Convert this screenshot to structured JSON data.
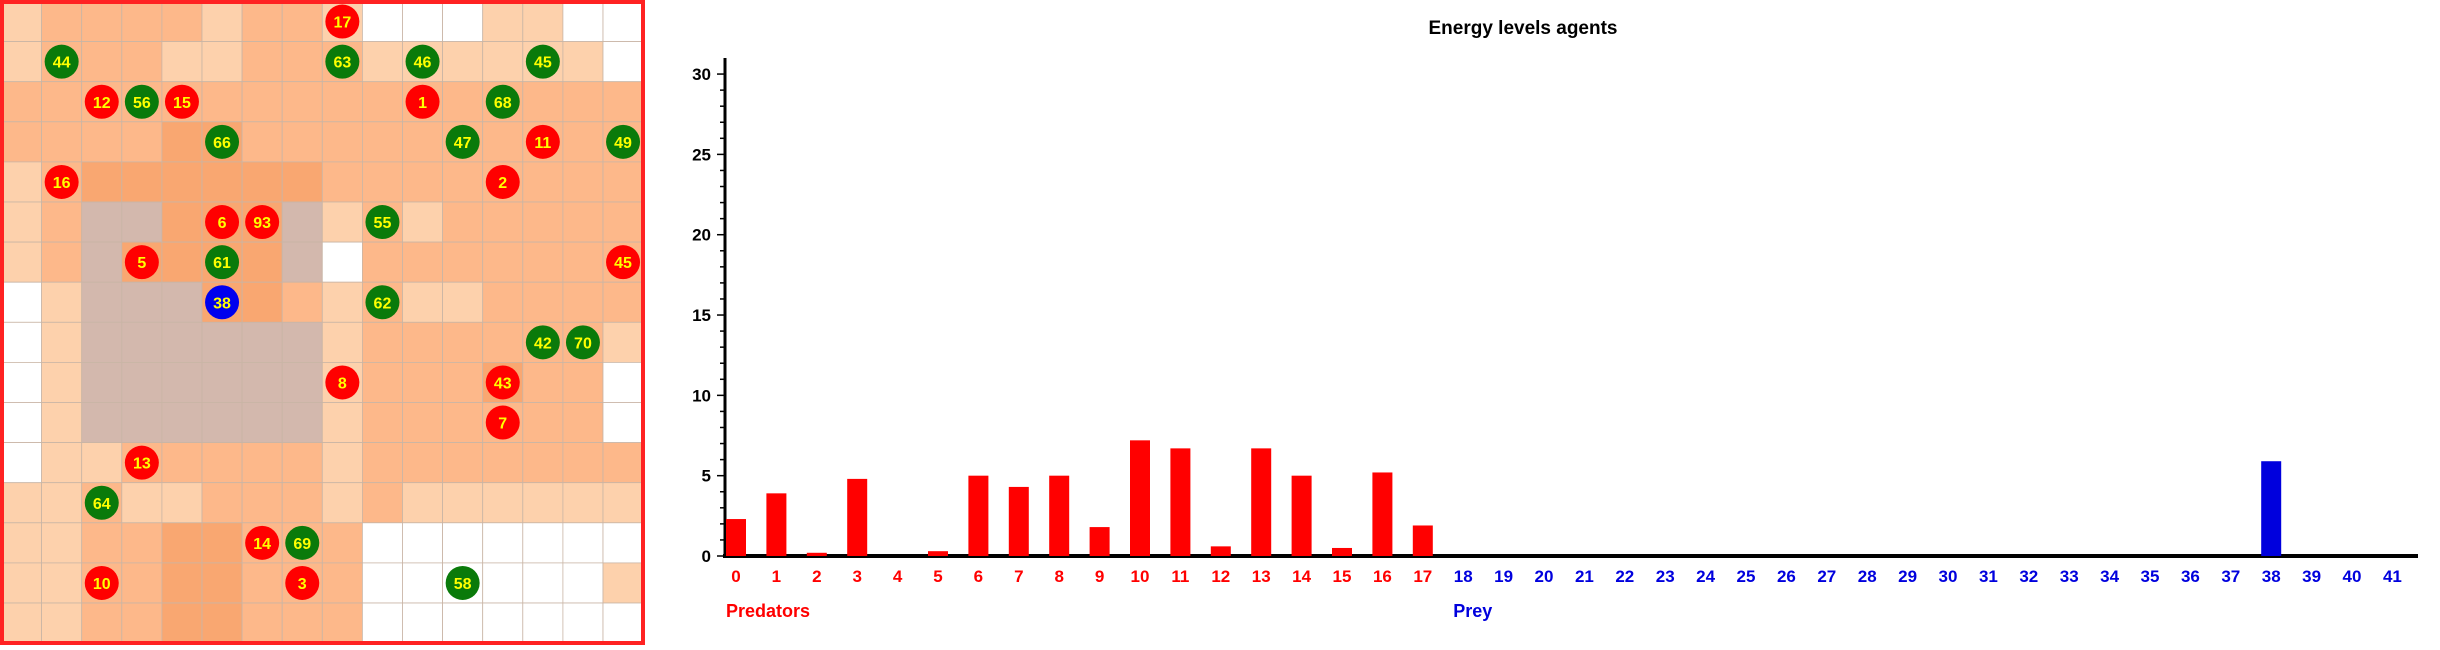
{
  "grid": {
    "rows": 16,
    "cols": 16,
    "palette": {
      "0": "#ffffff",
      "1": "#fdd1ac",
      "2": "#fdb88a",
      "3": "#f9a771",
      "4": "#f99c5f",
      "5": "#d3b8ad",
      "6": "#d7ac96"
    },
    "border_color": "#ff2222",
    "line_color": "#c9b5a5",
    "cells": [
      "1222212210001100",
      "1222112221111110",
      "2222222222222222",
      "2222332222222222",
      "1233333322222222",
      "1255333512122222",
      "1253333502222222",
      "0155533212112222",
      "0155555512222221",
      "0155555512223220",
      "0155555512222220",
      "0112222212222222",
      "1121122212111111",
      "1122332220000000",
      "1122332220000001",
      "1122332220000000"
    ],
    "agents": [
      {
        "id": "17",
        "type": "predator",
        "col": 8,
        "row": 0
      },
      {
        "id": "44",
        "type": "prey",
        "col": 1,
        "row": 1
      },
      {
        "id": "63",
        "type": "prey",
        "col": 8,
        "row": 1
      },
      {
        "id": "46",
        "type": "prey",
        "col": 10,
        "row": 1
      },
      {
        "id": "45",
        "type": "prey",
        "col": 13,
        "row": 1
      },
      {
        "id": "12",
        "type": "predator",
        "col": 2,
        "row": 2
      },
      {
        "id": "56",
        "type": "prey",
        "col": 3,
        "row": 2
      },
      {
        "id": "15",
        "type": "predator",
        "col": 4,
        "row": 2
      },
      {
        "id": "1",
        "type": "predator",
        "col": 10,
        "row": 2
      },
      {
        "id": "68",
        "type": "prey",
        "col": 12,
        "row": 2
      },
      {
        "id": "66",
        "type": "prey",
        "col": 5,
        "row": 3
      },
      {
        "id": "47",
        "type": "prey",
        "col": 11,
        "row": 3
      },
      {
        "id": "11",
        "type": "predator",
        "col": 13,
        "row": 3
      },
      {
        "id": "49",
        "type": "prey",
        "col": 15,
        "row": 3
      },
      {
        "id": "16",
        "type": "predator",
        "col": 1,
        "row": 4
      },
      {
        "id": "2",
        "type": "predator",
        "col": 12,
        "row": 4
      },
      {
        "id": "6",
        "type": "predator",
        "col": 5,
        "row": 5
      },
      {
        "id": "93",
        "type": "predator",
        "col": 6,
        "row": 5
      },
      {
        "id": "55",
        "type": "prey",
        "col": 9,
        "row": 5
      },
      {
        "id": "5",
        "type": "predator",
        "col": 3,
        "row": 6
      },
      {
        "id": "61",
        "type": "prey",
        "col": 5,
        "row": 6
      },
      {
        "id": "45",
        "type": "predator",
        "col": 15,
        "row": 6
      },
      {
        "id": "38",
        "type": "selected",
        "col": 5,
        "row": 7
      },
      {
        "id": "62",
        "type": "prey",
        "col": 9,
        "row": 7
      },
      {
        "id": "42",
        "type": "prey",
        "col": 13,
        "row": 8
      },
      {
        "id": "70",
        "type": "prey",
        "col": 14,
        "row": 8
      },
      {
        "id": "8",
        "type": "predator",
        "col": 8,
        "row": 9
      },
      {
        "id": "43",
        "type": "predator",
        "col": 12,
        "row": 9
      },
      {
        "id": "7",
        "type": "predator",
        "col": 12,
        "row": 10
      },
      {
        "id": "13",
        "type": "predator",
        "col": 3,
        "row": 11
      },
      {
        "id": "64",
        "type": "prey",
        "col": 2,
        "row": 12
      },
      {
        "id": "14",
        "type": "predator",
        "col": 6,
        "row": 13
      },
      {
        "id": "69",
        "type": "prey",
        "col": 7,
        "row": 13
      },
      {
        "id": "10",
        "type": "predator",
        "col": 2,
        "row": 14
      },
      {
        "id": "3",
        "type": "predator",
        "col": 7,
        "row": 14
      },
      {
        "id": "58",
        "type": "prey",
        "col": 11,
        "row": 14
      }
    ],
    "agent_colors": {
      "predator": "#ff0000",
      "prey": "#0a7a0a",
      "selected": "#0000ee",
      "label": "#ffff00"
    }
  },
  "chart_data": {
    "type": "bar",
    "title": "Energy levels agents",
    "xlabel": "",
    "ylabel": "",
    "ylim": [
      0,
      31
    ],
    "yticks": [
      0,
      5,
      10,
      15,
      20,
      25,
      30
    ],
    "grid": false,
    "categories": [
      "0",
      "1",
      "2",
      "3",
      "4",
      "5",
      "6",
      "7",
      "8",
      "9",
      "10",
      "11",
      "12",
      "13",
      "14",
      "15",
      "16",
      "17",
      "18",
      "19",
      "20",
      "21",
      "22",
      "23",
      "24",
      "25",
      "26",
      "27",
      "28",
      "29",
      "30",
      "31",
      "32",
      "33",
      "34",
      "35",
      "36",
      "37",
      "38",
      "39",
      "40",
      "41"
    ],
    "values": [
      2.3,
      3.9,
      0.2,
      4.8,
      0,
      0.3,
      5.0,
      4.3,
      5.0,
      1.8,
      7.2,
      6.7,
      0.6,
      6.7,
      5.0,
      0.5,
      5.2,
      1.9,
      0,
      0,
      0,
      0,
      0,
      0,
      0,
      0,
      0,
      0,
      0,
      0,
      0,
      0,
      0,
      0,
      0,
      0,
      0,
      0,
      5.9,
      0,
      0,
      0
    ],
    "groups": [
      {
        "name": "Predators",
        "from": 0,
        "to": 17,
        "color": "#ff0000"
      },
      {
        "name": "Prey",
        "from": 18,
        "to": 41,
        "color": "#0000dd"
      }
    ]
  }
}
